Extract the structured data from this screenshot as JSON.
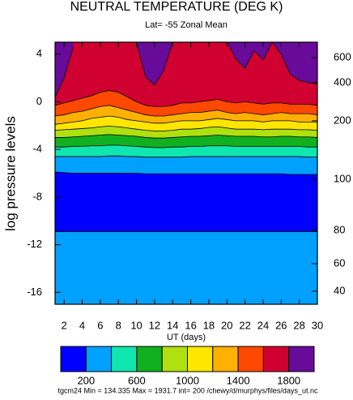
{
  "chart_data": {
    "type": "contour",
    "title": "NEUTRAL TEMPERATURE (DEG K)",
    "subtitle": "Lat= -55 Zonal Mean",
    "x_label": "UT (days)",
    "y_label": "log pressure levels",
    "footer": "tgcm24 Min = 134.335  Max  = 1931.7 int= 200 /chewy/d/murphys/files/days_ut.nc",
    "x": [
      1,
      2,
      3,
      4,
      5,
      6,
      7,
      8,
      9,
      10,
      11,
      12,
      13,
      14,
      15,
      16,
      17,
      18,
      19,
      20,
      21,
      22,
      23,
      24,
      25,
      26,
      27,
      28,
      29,
      30
    ],
    "xlim": [
      1,
      30
    ],
    "xticks": [
      2,
      4,
      6,
      8,
      10,
      12,
      14,
      16,
      18,
      20,
      22,
      24,
      26,
      28,
      30
    ],
    "ylim": [
      -17,
      5
    ],
    "yticks": [
      -16,
      -12,
      -8,
      -4,
      0,
      4
    ],
    "y2ticks": [
      600,
      400,
      200,
      100,
      80,
      60,
      40
    ],
    "y2_at": [
      3.7,
      1.6,
      -1.6,
      -6.5,
      -10.8,
      -13.6,
      -15.9
    ],
    "background_color": "#00a0ff",
    "series": [
      {
        "level": 200,
        "color": "#0000ff",
        "values": [
          -10.9,
          -10.9,
          -10.9,
          -10.9,
          -10.9,
          -10.9,
          -10.9,
          -10.9,
          -10.9,
          -10.9,
          -10.9,
          -10.9,
          -10.9,
          -10.9,
          -10.9,
          -10.9,
          -10.9,
          -10.9,
          -10.9,
          -10.9,
          -10.9,
          -10.9,
          -10.9,
          -10.9,
          -10.9,
          -10.9,
          -10.9,
          -10.9,
          -10.9,
          -10.9
        ]
      },
      {
        "level": 200,
        "color": "#00a0ff",
        "values": [
          -5.9,
          -5.95,
          -6.0,
          -6.0,
          -6.0,
          -6.0,
          -6.0,
          -6.0,
          -6.0,
          -6.0,
          -6.05,
          -6.05,
          -6.05,
          -6.05,
          -6.05,
          -6.05,
          -6.05,
          -6.05,
          -6.05,
          -6.05,
          -6.05,
          -6.05,
          -6.05,
          -6.05,
          -6.05,
          -6.05,
          -6.1,
          -6.1,
          -6.1,
          -6.1
        ]
      },
      {
        "level": 400,
        "color": "#10e6b0",
        "values": [
          -4.6,
          -4.6,
          -4.6,
          -4.6,
          -4.6,
          -4.6,
          -4.55,
          -4.55,
          -4.6,
          -4.6,
          -4.65,
          -4.65,
          -4.65,
          -4.65,
          -4.65,
          -4.6,
          -4.6,
          -4.6,
          -4.6,
          -4.6,
          -4.6,
          -4.6,
          -4.6,
          -4.6,
          -4.6,
          -4.6,
          -4.6,
          -4.6,
          -4.65,
          -4.65
        ]
      },
      {
        "level": 600,
        "color": "#10b020",
        "values": [
          -3.8,
          -3.8,
          -3.75,
          -3.75,
          -3.7,
          -3.7,
          -3.65,
          -3.65,
          -3.7,
          -3.75,
          -3.8,
          -3.85,
          -3.85,
          -3.8,
          -3.8,
          -3.75,
          -3.75,
          -3.7,
          -3.7,
          -3.7,
          -3.75,
          -3.75,
          -3.75,
          -3.75,
          -3.75,
          -3.75,
          -3.75,
          -3.75,
          -3.8,
          -3.8
        ]
      },
      {
        "level": 800,
        "color": "#b0e010",
        "values": [
          -3.0,
          -3.0,
          -2.95,
          -2.9,
          -2.85,
          -2.8,
          -2.75,
          -2.8,
          -2.85,
          -2.9,
          -3.0,
          -3.05,
          -3.05,
          -3.0,
          -2.95,
          -2.9,
          -2.9,
          -2.85,
          -2.8,
          -2.85,
          -2.9,
          -2.9,
          -2.9,
          -2.95,
          -2.95,
          -2.9,
          -2.9,
          -2.95,
          -2.95,
          -3.0
        ]
      },
      {
        "level": 1000,
        "color": "#ffe600",
        "values": [
          -2.4,
          -2.35,
          -2.3,
          -2.25,
          -2.2,
          -2.1,
          -2.05,
          -2.1,
          -2.2,
          -2.3,
          -2.4,
          -2.45,
          -2.45,
          -2.4,
          -2.3,
          -2.3,
          -2.25,
          -2.15,
          -2.1,
          -2.2,
          -2.3,
          -2.3,
          -2.3,
          -2.35,
          -2.3,
          -2.3,
          -2.3,
          -2.35,
          -2.35,
          -2.4
        ]
      },
      {
        "level": 1200,
        "color": "#ffb000",
        "values": [
          -1.9,
          -1.8,
          -1.7,
          -1.6,
          -1.4,
          -1.3,
          -1.2,
          -1.3,
          -1.5,
          -1.6,
          -1.7,
          -1.8,
          -1.8,
          -1.7,
          -1.6,
          -1.6,
          -1.6,
          -1.5,
          -1.4,
          -1.5,
          -1.6,
          -1.6,
          -1.6,
          -1.7,
          -1.6,
          -1.6,
          -1.6,
          -1.7,
          -1.7,
          -1.7
        ]
      },
      {
        "level": 1400,
        "color": "#ff4800",
        "values": [
          -1.2,
          -1.1,
          -0.9,
          -0.8,
          -0.6,
          -0.4,
          -0.3,
          -0.5,
          -0.7,
          -0.9,
          -1.1,
          -1.2,
          -1.2,
          -1.1,
          -1.0,
          -0.9,
          -0.9,
          -0.8,
          -0.7,
          -0.9,
          -1.0,
          -0.9,
          -1.0,
          -1.1,
          -1.0,
          -0.9,
          -1.0,
          -1.0,
          -1.0,
          -1.1
        ]
      },
      {
        "level": 1600,
        "color": "#d00030",
        "values": [
          -0.3,
          -0.1,
          0.1,
          0.3,
          0.5,
          0.8,
          0.95,
          0.8,
          0.4,
          0.0,
          -0.3,
          -0.4,
          -0.4,
          -0.3,
          -0.1,
          -0.1,
          0.0,
          0.1,
          0.2,
          0.0,
          -0.1,
          0.0,
          -0.1,
          -0.2,
          -0.1,
          -0.1,
          -0.2,
          -0.2,
          -0.2,
          -0.3
        ]
      },
      {
        "level": 1800,
        "color": "#680a9a",
        "values": [
          0.4,
          2.0,
          4.6,
          null,
          null,
          null,
          null,
          null,
          null,
          5,
          2.1,
          1.4,
          2.6,
          5,
          null,
          null,
          null,
          null,
          null,
          5,
          3.6,
          2.8,
          4.3,
          3.5,
          5,
          4.0,
          2.3,
          1.8,
          1.6,
          1.5
        ]
      }
    ],
    "colorbar": {
      "colors": [
        "#0000ff",
        "#00a0ff",
        "#10e6b0",
        "#10b020",
        "#b0e010",
        "#ffe600",
        "#ffb000",
        "#ff4800",
        "#d00030",
        "#680a9a"
      ],
      "levels": [
        200,
        400,
        600,
        800,
        1000,
        1200,
        1400,
        1600,
        1800
      ],
      "ticks": [
        200,
        600,
        1000,
        1400,
        1800
      ]
    }
  }
}
